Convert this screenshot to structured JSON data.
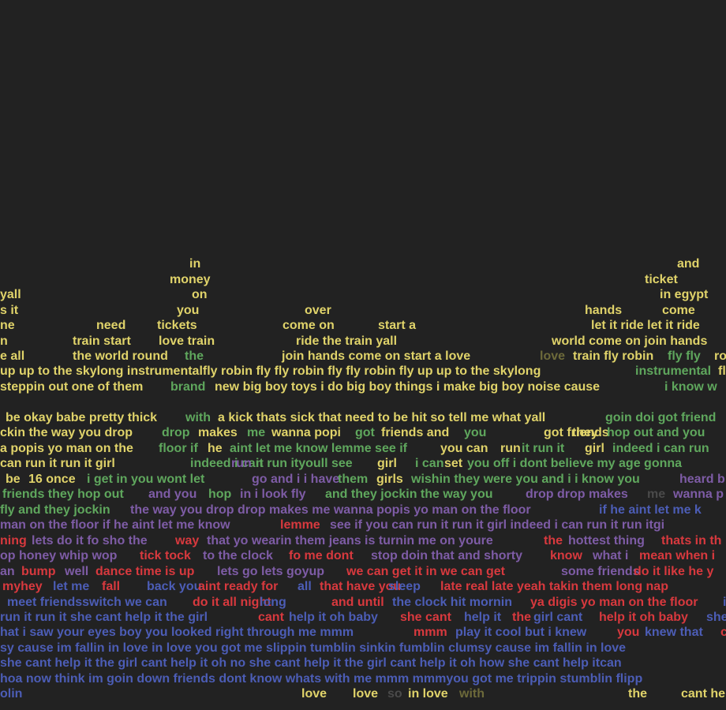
{
  "colors": {
    "background": "#222222",
    "yellow": "#E0D36A",
    "green": "#5FA75D",
    "purple": "#7E5CA6",
    "red": "#D8393E",
    "blue": "#4C5DB6",
    "dim_olive": "#6D6A3A",
    "dim_gray": "#4A4A4A",
    "white": "#D9D9D9"
  },
  "words": [
    {
      "text": "in",
      "color": "yellow"
    },
    {
      "text": "and",
      "color": "yellow"
    },
    {
      "text": "money",
      "color": "yellow"
    },
    {
      "text": "ticket",
      "color": "yellow"
    },
    {
      "text": "yall",
      "color": "yellow"
    },
    {
      "text": "on",
      "color": "yellow"
    },
    {
      "text": "in egypt",
      "color": "yellow"
    },
    {
      "text": "s it",
      "color": "yellow"
    },
    {
      "text": "you",
      "color": "yellow"
    },
    {
      "text": "over",
      "color": "yellow"
    },
    {
      "text": "hands",
      "color": "yellow"
    },
    {
      "text": "come",
      "color": "yellow"
    },
    {
      "text": "ne",
      "color": "yellow"
    },
    {
      "text": "need",
      "color": "yellow"
    },
    {
      "text": "tickets",
      "color": "yellow"
    },
    {
      "text": "come on",
      "color": "yellow"
    },
    {
      "text": "start a",
      "color": "yellow"
    },
    {
      "text": "let it ride let it ride",
      "color": "yellow"
    },
    {
      "text": "n",
      "color": "yellow"
    },
    {
      "text": "train start",
      "color": "yellow"
    },
    {
      "text": "love train",
      "color": "yellow"
    },
    {
      "text": "ride the train yall",
      "color": "yellow"
    },
    {
      "text": "world come on join hands",
      "color": "yellow"
    },
    {
      "text": "e all",
      "color": "yellow"
    },
    {
      "text": "the world round",
      "color": "yellow"
    },
    {
      "text": "the",
      "color": "green"
    },
    {
      "text": "join hands come on start a love",
      "color": "yellow"
    },
    {
      "text": "love",
      "color": "dim_olive"
    },
    {
      "text": "train fly robin",
      "color": "yellow"
    },
    {
      "text": "fly fly",
      "color": "green"
    },
    {
      "text": "ro",
      "color": "yellow"
    },
    {
      "text": "up up to the skylong instrumentalfly robin fly fly robin fly fly robin fly up up to the skylong",
      "color": "yellow"
    },
    {
      "text": "instrumental",
      "color": "green"
    },
    {
      "text": "fly",
      "color": "yellow"
    },
    {
      "text": "steppin out one of them",
      "color": "yellow"
    },
    {
      "text": "brand",
      "color": "green"
    },
    {
      "text": "new big boy toys i do big boy things i make big boy noise cause",
      "color": "yellow"
    },
    {
      "text": "i know w",
      "color": "green"
    },
    {
      "text": "be okay babe pretty thick",
      "color": "yellow"
    },
    {
      "text": "with",
      "color": "green"
    },
    {
      "text": "a kick thats sick that need to be hit so tell me what yall",
      "color": "yellow"
    },
    {
      "text": "goin doi got friend",
      "color": "green"
    },
    {
      "text": "ckin the way you drop",
      "color": "yellow"
    },
    {
      "text": "drop",
      "color": "green"
    },
    {
      "text": "makes",
      "color": "yellow"
    },
    {
      "text": "me",
      "color": "green"
    },
    {
      "text": "wanna popi",
      "color": "yellow"
    },
    {
      "text": "got",
      "color": "green"
    },
    {
      "text": "friends and",
      "color": "yellow"
    },
    {
      "text": "you",
      "color": "green"
    },
    {
      "text": "got friends",
      "color": "yellow"
    },
    {
      "text": "they",
      "color": "yellow"
    },
    {
      "text": "hop out and you",
      "color": "green"
    },
    {
      "text": "a popis yo man on the",
      "color": "yellow"
    },
    {
      "text": "floor if",
      "color": "green"
    },
    {
      "text": "he",
      "color": "yellow"
    },
    {
      "text": "aint let me know lemme see if",
      "color": "green"
    },
    {
      "text": "you can",
      "color": "yellow"
    },
    {
      "text": "run",
      "color": "yellow"
    },
    {
      "text": "it run it",
      "color": "green"
    },
    {
      "text": "girl",
      "color": "yellow"
    },
    {
      "text": "indeed i can run",
      "color": "green"
    },
    {
      "text": "can run it run it girl",
      "color": "yellow"
    },
    {
      "text": "indeed i can",
      "color": "green"
    },
    {
      "text": "run",
      "color": "purple"
    },
    {
      "text": "it run ityoull see",
      "color": "green"
    },
    {
      "text": "girl",
      "color": "yellow"
    },
    {
      "text": "i can",
      "color": "green"
    },
    {
      "text": "set",
      "color": "yellow"
    },
    {
      "text": "you off i dont believe my age gonna",
      "color": "green"
    },
    {
      "text": "be",
      "color": "yellow"
    },
    {
      "text": "16 once",
      "color": "yellow"
    },
    {
      "text": "i get in you wont let",
      "color": "green"
    },
    {
      "text": "go and i i have",
      "color": "purple"
    },
    {
      "text": "them",
      "color": "green"
    },
    {
      "text": "girls",
      "color": "yellow"
    },
    {
      "text": "wishin they were you and i i know you",
      "color": "green"
    },
    {
      "text": "heard b",
      "color": "purple"
    },
    {
      "text": "friends they hop out",
      "color": "green"
    },
    {
      "text": "and you",
      "color": "purple"
    },
    {
      "text": "hop",
      "color": "green"
    },
    {
      "text": "in i look fly",
      "color": "purple"
    },
    {
      "text": "and they jockin the way you",
      "color": "green"
    },
    {
      "text": "drop drop makes",
      "color": "purple"
    },
    {
      "text": "me",
      "color": "dim_gray"
    },
    {
      "text": "wanna p",
      "color": "purple"
    },
    {
      "text": "fly and they jockin",
      "color": "green"
    },
    {
      "text": "the way you drop drop makes me wanna popis yo man on the floor",
      "color": "purple"
    },
    {
      "text": "if he aint let me k",
      "color": "blue"
    },
    {
      "text": "man on the floor if he aint let me know",
      "color": "purple"
    },
    {
      "text": "lemme",
      "color": "red"
    },
    {
      "text": "see if you can run it run it girl indeed i can run it run itgi",
      "color": "purple"
    },
    {
      "text": "ning",
      "color": "red"
    },
    {
      "text": "lets do it fo sho the",
      "color": "purple"
    },
    {
      "text": "way",
      "color": "red"
    },
    {
      "text": "that yo wearin them jeans is turnin me on youre",
      "color": "purple"
    },
    {
      "text": "the",
      "color": "red"
    },
    {
      "text": "hottest thing",
      "color": "purple"
    },
    {
      "text": "thats in th",
      "color": "red"
    },
    {
      "text": "op honey whip wop",
      "color": "purple"
    },
    {
      "text": "tick tock",
      "color": "red"
    },
    {
      "text": "to the clock",
      "color": "purple"
    },
    {
      "text": "fo me dont",
      "color": "red"
    },
    {
      "text": "stop doin that and shorty",
      "color": "purple"
    },
    {
      "text": "know",
      "color": "red"
    },
    {
      "text": "what i",
      "color": "purple"
    },
    {
      "text": "mean when i",
      "color": "red"
    },
    {
      "text": "an",
      "color": "purple"
    },
    {
      "text": "bump",
      "color": "red"
    },
    {
      "text": "well",
      "color": "purple"
    },
    {
      "text": "dance time is up",
      "color": "red"
    },
    {
      "text": "lets go lets goyup",
      "color": "purple"
    },
    {
      "text": "we can get it in we can get",
      "color": "red"
    },
    {
      "text": "some friends",
      "color": "purple"
    },
    {
      "text": "do it like he y",
      "color": "red"
    },
    {
      "text": "myhey",
      "color": "red"
    },
    {
      "text": "let me",
      "color": "blue"
    },
    {
      "text": "fall",
      "color": "red"
    },
    {
      "text": "back you",
      "color": "blue"
    },
    {
      "text": "aint ready for",
      "color": "red"
    },
    {
      "text": "all",
      "color": "blue"
    },
    {
      "text": "that have you",
      "color": "red"
    },
    {
      "text": "sleep",
      "color": "blue"
    },
    {
      "text": "late real late yeah takin them long nap",
      "color": "red"
    },
    {
      "text": "meet friendsswitch we can",
      "color": "blue"
    },
    {
      "text": "do it all night",
      "color": "red"
    },
    {
      "text": "long",
      "color": "blue"
    },
    {
      "text": "and until",
      "color": "red"
    },
    {
      "text": "the clock hit mornin",
      "color": "blue"
    },
    {
      "text": "ya digis yo man on the floor",
      "color": "red"
    },
    {
      "text": "i",
      "color": "blue"
    },
    {
      "text": "run it run it she cant help it the girl",
      "color": "blue"
    },
    {
      "text": "cant",
      "color": "red"
    },
    {
      "text": "help it oh baby",
      "color": "blue"
    },
    {
      "text": "she cant",
      "color": "red"
    },
    {
      "text": "help it",
      "color": "blue"
    },
    {
      "text": "the",
      "color": "red"
    },
    {
      "text": "girl cant",
      "color": "blue"
    },
    {
      "text": "help it oh baby",
      "color": "red"
    },
    {
      "text": "she",
      "color": "blue"
    },
    {
      "text": "hat i saw your eyes boy you looked right through me mmm",
      "color": "blue"
    },
    {
      "text": "mmm",
      "color": "red"
    },
    {
      "text": "play it cool but i knew",
      "color": "blue"
    },
    {
      "text": "you",
      "color": "red"
    },
    {
      "text": "knew that",
      "color": "blue"
    },
    {
      "text": "c",
      "color": "red"
    },
    {
      "text": "sy cause im fallin in love in love you got me slippin tumblin sinkin fumblin clumsy cause im fallin in love",
      "color": "blue"
    },
    {
      "text": "she cant help it the girl cant help it oh no she cant help it the girl cant help it oh how she cant help itcan",
      "color": "blue"
    },
    {
      "text": "hoa now think im goin down friends dont know whats with me mmm mmmyou got me trippin stumblin flipp",
      "color": "blue"
    },
    {
      "text": "olin",
      "color": "blue"
    },
    {
      "text": "love",
      "color": "yellow"
    },
    {
      "text": "love",
      "color": "yellow"
    },
    {
      "text": "so",
      "color": "dim_gray"
    },
    {
      "text": "in love",
      "color": "yellow"
    },
    {
      "text": "with",
      "color": "dim_olive"
    },
    {
      "text": "the",
      "color": "yellow"
    },
    {
      "text": "cant he",
      "color": "yellow"
    }
  ]
}
